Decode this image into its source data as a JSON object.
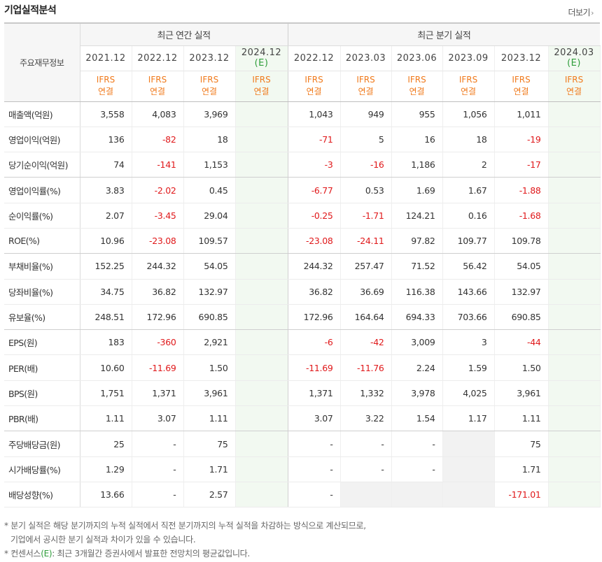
{
  "title": "기업실적분석",
  "more_label": "더보기",
  "more_chevron": "›",
  "corner_label": "주요재무정보",
  "groups": [
    "최근 연간 실적",
    "최근 분기 실적"
  ],
  "periods": [
    {
      "label": "2021.12",
      "est": false
    },
    {
      "label": "2022.12",
      "est": false
    },
    {
      "label": "2023.12",
      "est": false
    },
    {
      "label": "2024.12",
      "est_mark": "(E)",
      "est": true
    },
    {
      "label": "2022.12",
      "est": false
    },
    {
      "label": "2023.03",
      "est": false
    },
    {
      "label": "2023.06",
      "est": false
    },
    {
      "label": "2023.09",
      "est": false
    },
    {
      "label": "2023.12",
      "est": false
    },
    {
      "label": "2024.03",
      "est_mark": "(E)",
      "est": true
    }
  ],
  "ifrs_line1": "IFRS",
  "ifrs_line2": "연결",
  "rows": [
    {
      "label": "매출액(억원)",
      "values": [
        "3,558",
        "4,083",
        "3,969",
        "",
        "1,043",
        "949",
        "955",
        "1,056",
        "1,011",
        ""
      ]
    },
    {
      "label": "영업이익(억원)",
      "values": [
        "136",
        "-82",
        "18",
        "",
        "-71",
        "5",
        "16",
        "18",
        "-19",
        ""
      ]
    },
    {
      "label": "당기순이익(억원)",
      "values": [
        "74",
        "-141",
        "1,153",
        "",
        "-3",
        "-16",
        "1,186",
        "2",
        "-17",
        ""
      ]
    },
    {
      "label": "영업이익률(%)",
      "values": [
        "3.83",
        "-2.02",
        "0.45",
        "",
        "-6.77",
        "0.53",
        "1.69",
        "1.67",
        "-1.88",
        ""
      ]
    },
    {
      "label": "순이익률(%)",
      "values": [
        "2.07",
        "-3.45",
        "29.04",
        "",
        "-0.25",
        "-1.71",
        "124.21",
        "0.16",
        "-1.68",
        ""
      ]
    },
    {
      "label": "ROE(%)",
      "values": [
        "10.96",
        "-23.08",
        "109.57",
        "",
        "-23.08",
        "-24.11",
        "97.82",
        "109.77",
        "109.78",
        ""
      ]
    },
    {
      "label": "부채비율(%)",
      "values": [
        "152.25",
        "244.32",
        "54.05",
        "",
        "244.32",
        "257.47",
        "71.52",
        "56.42",
        "54.05",
        ""
      ]
    },
    {
      "label": "당좌비율(%)",
      "values": [
        "34.75",
        "36.82",
        "132.97",
        "",
        "36.82",
        "36.69",
        "116.38",
        "143.66",
        "132.97",
        ""
      ]
    },
    {
      "label": "유보율(%)",
      "values": [
        "248.51",
        "172.96",
        "690.85",
        "",
        "172.96",
        "164.64",
        "694.33",
        "703.66",
        "690.85",
        ""
      ]
    },
    {
      "label": "EPS(원)",
      "values": [
        "183",
        "-360",
        "2,921",
        "",
        "-6",
        "-42",
        "3,009",
        "3",
        "-44",
        ""
      ]
    },
    {
      "label": "PER(배)",
      "values": [
        "10.60",
        "-11.69",
        "1.50",
        "",
        "-11.69",
        "-11.76",
        "2.24",
        "1.59",
        "1.50",
        ""
      ]
    },
    {
      "label": "BPS(원)",
      "values": [
        "1,751",
        "1,371",
        "3,961",
        "",
        "1,371",
        "1,332",
        "3,978",
        "4,025",
        "3,961",
        ""
      ]
    },
    {
      "label": "PBR(배)",
      "values": [
        "1.11",
        "3.07",
        "1.11",
        "",
        "3.07",
        "3.22",
        "1.54",
        "1.17",
        "1.11",
        ""
      ]
    },
    {
      "label": "주당배당금(원)",
      "values": [
        "25",
        "-",
        "75",
        "",
        "-",
        "-",
        "-",
        "",
        "75",
        ""
      ]
    },
    {
      "label": "시가배당률(%)",
      "values": [
        "1.29",
        "-",
        "1.71",
        "",
        "-",
        "-",
        "-",
        "",
        "1.71",
        ""
      ]
    },
    {
      "label": "배당성향(%)",
      "values": [
        "13.66",
        "-",
        "2.57",
        "",
        "-",
        "",
        "",
        "",
        "-171.01",
        ""
      ]
    }
  ],
  "notes": {
    "line1": "* 분기 실적은 해당 분기까지의 누적 실적에서 직전 분기까지의 누적 실적을 차감하는 방식으로 계산되므로,",
    "line2": "기업에서 공시한 분기 실적과 차이가 있을 수 있습니다.",
    "line3_prefix": "* 컨센서스",
    "line3_mark": "(E)",
    "line3_suffix": ": 최근 3개월간 증권사에서 발표한 전망치의 평균값입니다."
  },
  "colors": {
    "negative": "#e0191b",
    "ifrs": "#f07a1c",
    "estimate": "#2f9e3b",
    "estimate_bg": "#f2f9f1"
  }
}
